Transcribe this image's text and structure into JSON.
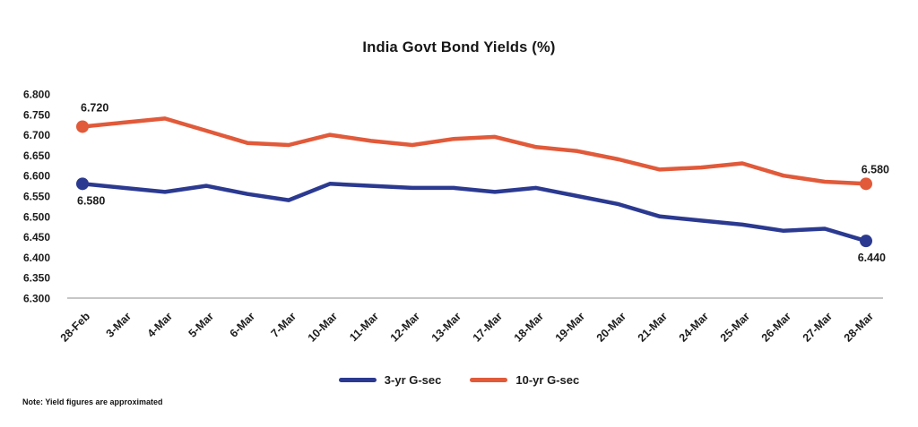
{
  "title": "India Govt Bond Yields (%)",
  "note": "Note: Yield figures are approximated",
  "chart_data": {
    "type": "line",
    "title": "India Govt Bond Yields (%)",
    "categories": [
      "28-Feb",
      "3-Mar",
      "4-Mar",
      "5-Mar",
      "6-Mar",
      "7-Mar",
      "10-Mar",
      "11-Mar",
      "12-Mar",
      "13-Mar",
      "17-Mar",
      "18-Mar",
      "19-Mar",
      "20-Mar",
      "21-Mar",
      "24-Mar",
      "25-Mar",
      "26-Mar",
      "27-Mar",
      "28-Mar"
    ],
    "series": [
      {
        "name": "3-yr G-sec",
        "color": "#2b3a90",
        "values": [
          6.58,
          6.57,
          6.56,
          6.575,
          6.555,
          6.54,
          6.58,
          6.575,
          6.57,
          6.57,
          6.56,
          6.57,
          6.55,
          6.53,
          6.5,
          6.49,
          6.48,
          6.465,
          6.47,
          6.44
        ]
      },
      {
        "name": "10-yr G-sec",
        "color": "#e15a3a",
        "values": [
          6.72,
          6.73,
          6.74,
          6.71,
          6.68,
          6.675,
          6.7,
          6.685,
          6.675,
          6.69,
          6.695,
          6.67,
          6.66,
          6.64,
          6.615,
          6.62,
          6.63,
          6.6,
          6.585,
          6.58
        ]
      }
    ],
    "ylim": [
      6.3,
      6.8
    ],
    "ytick_step": 0.05,
    "ytick_decimals": 3,
    "ytick_labels": [
      "6.800",
      "6.750",
      "6.700",
      "6.650",
      "6.600",
      "6.550",
      "6.500",
      "6.450",
      "6.400",
      "6.350",
      "6.300"
    ],
    "grid": false,
    "legend_position": "bottom",
    "axis_color": "#b3b3b3",
    "text_color": "#1c1c1c",
    "annotations": [
      {
        "series": 1,
        "index": 0,
        "text": "6.720",
        "placement": "above-first"
      },
      {
        "series": 0,
        "index": 0,
        "text": "6.580",
        "placement": "below-first"
      },
      {
        "series": 1,
        "index": 19,
        "text": "6.580",
        "placement": "above-last"
      },
      {
        "series": 0,
        "index": 19,
        "text": "6.440",
        "placement": "below-last"
      }
    ]
  }
}
